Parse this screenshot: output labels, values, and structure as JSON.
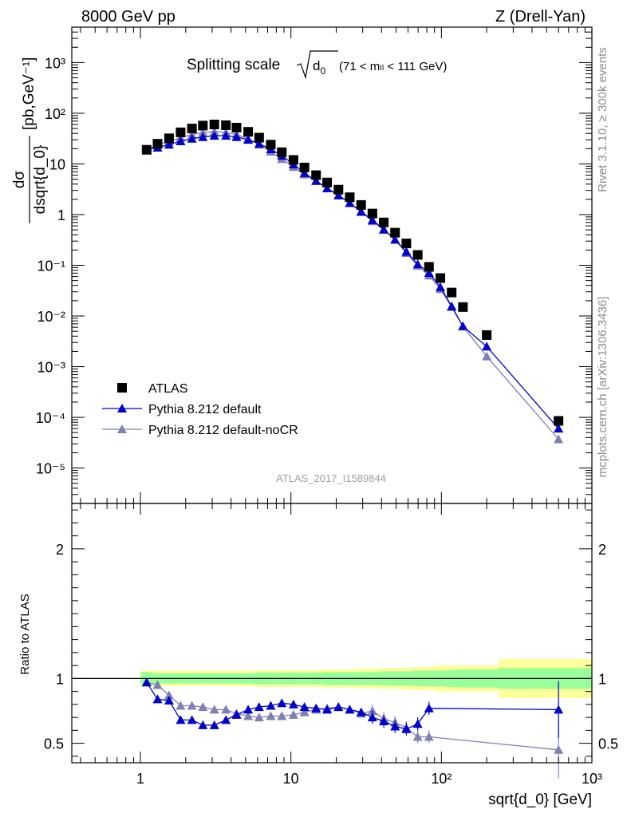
{
  "header": {
    "left": "8000 GeV pp",
    "right": "Z (Drell-Yan)"
  },
  "side_labels": {
    "top": "Rivet 3.1.10, ≥ 300k events",
    "bottom": "mcplots.cern.ch [arXiv:1306.3436]"
  },
  "watermark": "ATLAS_2017_I1589844",
  "chart_data": [
    {
      "type": "scatter",
      "panel": "main",
      "title": "Splitting scale",
      "title_symbol": "√d₀",
      "title_range": "(71 < mₗₗ < 111 GeV)",
      "ylabel_num": "dσ",
      "ylabel_den": "dsqrt{d_0}",
      "ylabel_unit": "[pb,GeV⁻¹]",
      "xscale": "log",
      "yscale": "log",
      "xlim": [
        0.35,
        1000
      ],
      "ylim": [
        2e-06,
        5000
      ],
      "x_ticks": [
        1,
        10,
        100,
        1000
      ],
      "y_ticks": [
        {
          "v": 1000,
          "label": "10³"
        },
        {
          "v": 100,
          "label": "10²"
        },
        {
          "v": 10,
          "label": "10"
        },
        {
          "v": 1,
          "label": "1"
        },
        {
          "v": 0.1,
          "label": "10⁻¹"
        },
        {
          "v": 0.01,
          "label": "10⁻²"
        },
        {
          "v": 0.001,
          "label": "10⁻³"
        },
        {
          "v": 0.0001,
          "label": "10⁻⁴"
        },
        {
          "v": 1e-05,
          "label": "10⁻⁵"
        }
      ],
      "x": [
        1.1,
        1.3,
        1.55,
        1.85,
        2.2,
        2.6,
        3.1,
        3.7,
        4.35,
        5.2,
        6.15,
        7.35,
        8.7,
        10.4,
        12.3,
        14.7,
        17.4,
        20.7,
        24.6,
        29.3,
        34.8,
        41.4,
        49.2,
        58.5,
        69.6,
        82.7,
        98.4,
        117,
        139,
        200,
        600
      ],
      "series": [
        {
          "name": "ATLAS",
          "marker": "square",
          "color": "#000000",
          "values": [
            19,
            25,
            32,
            42,
            50,
            57,
            60,
            58,
            52,
            43,
            33,
            24,
            17,
            12,
            8.5,
            6,
            4.3,
            3.1,
            2.2,
            1.55,
            1.05,
            0.7,
            0.44,
            0.27,
            0.16,
            0.093,
            0.056,
            0.029,
            0.015,
            0.0042,
            8.5e-05
          ]
        },
        {
          "name": "Pythia 8.212 default",
          "marker": "triangle",
          "color": "#0000cc",
          "values": [
            19,
            21,
            24,
            28,
            31.5,
            34,
            36,
            36,
            34,
            30,
            25,
            19.5,
            14.5,
            9.8,
            6.6,
            4.65,
            3.3,
            2.4,
            1.7,
            1.15,
            0.78,
            0.51,
            0.32,
            0.185,
            0.105,
            0.071,
            0.037,
            0.0155,
            0.0063,
            0.0025,
            6e-05
          ]
        },
        {
          "name": "Pythia 8.212 default-noCR",
          "marker": "triangle",
          "color": "#7f7fb2",
          "values": [
            19,
            23.5,
            27.5,
            33,
            38,
            41.5,
            43.5,
            42,
            38,
            31.5,
            24,
            17.5,
            12.5,
            8.7,
            6.2,
            4.6,
            3.3,
            2.4,
            1.7,
            1.12,
            0.74,
            0.5,
            0.32,
            0.175,
            0.098,
            0.063,
            0.034,
            0.015,
            0.0062,
            0.0016,
            3.7e-05
          ]
        }
      ],
      "legend_position": "bottom-left"
    },
    {
      "type": "line",
      "panel": "ratio",
      "ylabel": "Ratio to ATLAS",
      "xlabel": "sqrt{d_0} [GeV]",
      "xscale": "log",
      "yscale": "linear",
      "xlim": [
        0.35,
        1000
      ],
      "ylim": [
        0.35,
        2.35
      ],
      "x_ticks": [
        {
          "v": 1,
          "label": "1"
        },
        {
          "v": 10,
          "label": "10"
        },
        {
          "v": 100,
          "label": "10²"
        },
        {
          "v": 1000,
          "label": "10³"
        }
      ],
      "y_ticks": [
        {
          "v": 0.5,
          "label": "0.5"
        },
        {
          "v": 1,
          "label": "1"
        },
        {
          "v": 2,
          "label": "2"
        }
      ],
      "band_edges": [
        1.0,
        1.2,
        1.42,
        1.7,
        2.0,
        2.4,
        2.85,
        3.4,
        4.0,
        4.8,
        5.65,
        6.75,
        8.0,
        9.5,
        11.3,
        13.5,
        16,
        19,
        22.6,
        27,
        32,
        38,
        45,
        53.5,
        64,
        76,
        90,
        107,
        128,
        240,
        1000
      ],
      "band_green_halfwidth": [
        0.05,
        0.04,
        0.04,
        0.04,
        0.04,
        0.04,
        0.04,
        0.04,
        0.04,
        0.04,
        0.045,
        0.045,
        0.045,
        0.045,
        0.045,
        0.045,
        0.05,
        0.05,
        0.05,
        0.05,
        0.05,
        0.055,
        0.055,
        0.055,
        0.06,
        0.06,
        0.06,
        0.065,
        0.07,
        0.08,
        0.08
      ],
      "band_yellow_halfwidth": [
        0.06,
        0.06,
        0.06,
        0.06,
        0.06,
        0.06,
        0.06,
        0.06,
        0.06,
        0.06,
        0.065,
        0.065,
        0.065,
        0.065,
        0.065,
        0.065,
        0.07,
        0.07,
        0.07,
        0.075,
        0.075,
        0.08,
        0.08,
        0.085,
        0.09,
        0.09,
        0.1,
        0.1,
        0.1,
        0.15,
        0.15
      ],
      "x": [
        1.1,
        1.3,
        1.55,
        1.85,
        2.2,
        2.6,
        3.1,
        3.7,
        4.35,
        5.2,
        6.15,
        7.35,
        8.7,
        10.4,
        12.3,
        14.7,
        17.4,
        20.7,
        24.6,
        29.3,
        34.8,
        41.4,
        49.2,
        58.5,
        69.6,
        82.7,
        600
      ],
      "series": [
        {
          "name": "Pythia 8.212 default",
          "color": "#0000cc",
          "values": [
            0.97,
            0.84,
            0.83,
            0.68,
            0.68,
            0.64,
            0.64,
            0.68,
            0.72,
            0.76,
            0.78,
            0.79,
            0.81,
            0.8,
            0.78,
            0.77,
            0.76,
            0.78,
            0.76,
            0.74,
            0.7,
            0.67,
            0.63,
            0.61,
            0.65,
            0.77,
            0.76
          ]
        },
        {
          "name": "Pythia 8.212 default-noCR",
          "color": "#7f7fb2",
          "values": [
            0.97,
            0.95,
            0.87,
            0.79,
            0.79,
            0.78,
            0.76,
            0.76,
            0.73,
            0.71,
            0.7,
            0.71,
            0.71,
            0.72,
            0.74,
            0.76,
            0.77,
            0.78,
            0.76,
            0.73,
            0.75,
            0.69,
            0.66,
            0.62,
            0.55,
            0.55,
            0.45
          ]
        }
      ]
    }
  ]
}
